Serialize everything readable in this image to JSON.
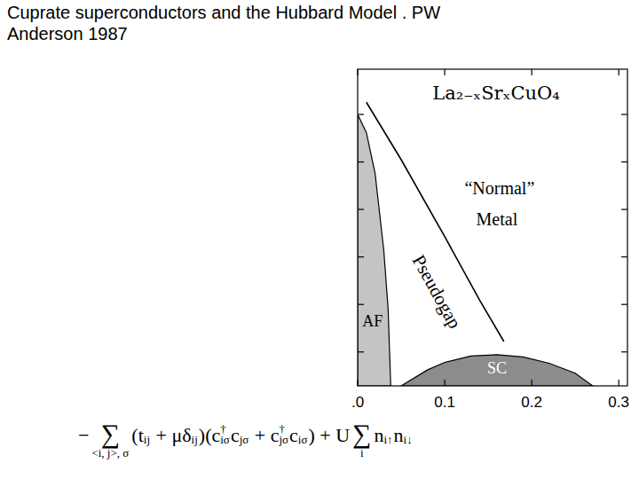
{
  "slide_title": [
    "Cuprate superconductors and the Hubbard Model . PW",
    "Anderson 1987"
  ],
  "chart_data": {
    "type": "area",
    "title": "La₂₋ₓSrₓCuO₄",
    "xlim": [
      0,
      0.31
    ],
    "xticks": [
      {
        "value": 0,
        "label": ".0"
      },
      0.1,
      0.2,
      0.3
    ],
    "ylim": [
      0,
      700
    ],
    "yticks": [
      75,
      180,
      285,
      390,
      495,
      600
    ],
    "tick_labels": "x",
    "grid": false,
    "series": [
      {
        "type": "area",
        "color": "#c4c4c4",
        "x": [
          0,
          0.01,
          0.02,
          0.03,
          0.035,
          0.038
        ],
        "values": [
          600,
          560,
          470,
          300,
          170,
          0
        ]
      },
      {
        "type": "area",
        "color": "#8c8c8c",
        "x": [
          0.05,
          0.08,
          0.1,
          0.13,
          0.16,
          0.19,
          0.22,
          0.25,
          0.27
        ],
        "values": [
          0,
          35,
          52,
          66,
          69,
          64,
          50,
          28,
          0
        ]
      },
      {
        "type": "line",
        "color": "#000000",
        "x": [
          0.01,
          0.05,
          0.1,
          0.14,
          0.168
        ],
        "values": [
          627,
          500,
          330,
          190,
          98
        ]
      }
    ],
    "annotations": [
      {
        "text": "“Normal”",
        "x": 0.163,
        "y": 433,
        "color": "#000000"
      },
      {
        "text": "Metal",
        "x": 0.16,
        "y": 363,
        "color": "#000000"
      },
      {
        "text": "Pseudogap",
        "x": 0.089,
        "y": 206,
        "color": "#000000"
      },
      {
        "text": "AF",
        "x": 0.017,
        "y": 139,
        "color": "#000000"
      },
      {
        "text": "SC",
        "x": 0.16,
        "y": 35,
        "color": "#ffffff"
      }
    ]
  },
  "formula": [
    {
      "t": "−"
    },
    {
      "big": "∑",
      "under": "<i, j>, σ"
    },
    {
      "t": "(t"
    },
    {
      "sub": "ij"
    },
    {
      "t": " + μδ"
    },
    {
      "sub": "ij"
    },
    {
      "t": ")(c"
    },
    {
      "sup": "†",
      "sub": "iσ"
    },
    {
      "t": "c"
    },
    {
      "sub": "jσ"
    },
    {
      "t": " + c"
    },
    {
      "sup": "†",
      "sub": "jσ"
    },
    {
      "t": "c"
    },
    {
      "sub": "iσ"
    },
    {
      "t": ") + U"
    },
    {
      "big": "∑",
      "under": "i"
    },
    {
      "t": "n"
    },
    {
      "sub": "i↑"
    },
    {
      "t": "n"
    },
    {
      "sub": "i↓"
    }
  ]
}
